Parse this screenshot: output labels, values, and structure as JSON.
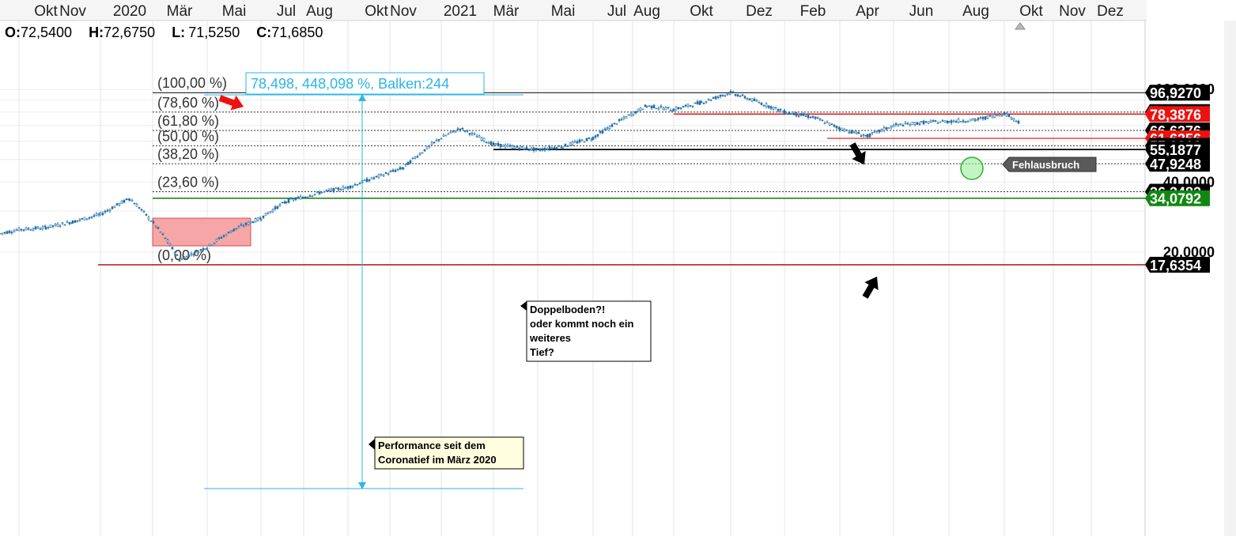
{
  "timeline": {
    "labels": [
      "Okt",
      "Nov",
      "2020",
      "Mär",
      "Mai",
      "Jul",
      "Aug",
      "Okt",
      "Nov",
      "2021",
      "Mär",
      "Mai",
      "Jul",
      "Aug",
      "Okt",
      "Dez",
      "Feb",
      "Apr",
      "Jun",
      "Aug",
      "Okt",
      "Nov",
      "Dez"
    ]
  },
  "ohlc": {
    "o_key": "O:",
    "o_val": "72,5400",
    "h_key": "H:",
    "h_val": "72,6750",
    "l_key": "L:",
    "l_val": "71,5250",
    "c_key": "C:",
    "c_val": "71,6850"
  },
  "fib_labels": [
    "(100,00 %)",
    "(78,60 %)",
    "(61,80 %)",
    "(50,00 %)",
    "(38,20 %)",
    "(23,60 %)",
    "(0,00 %)"
  ],
  "performance_label": "78,498, 448,098 %, Balken:244",
  "annotations": {
    "fehlausbruch": "Fehlausbruch",
    "doppelboden": [
      "Doppelboden?!",
      "oder kommt noch ein",
      "weiteres",
      "Tief?"
    ],
    "performance_note": [
      "Performance seit dem",
      "Coronatief im März 2020"
    ]
  },
  "axis": {
    "scale_labels": [
      "100,0000",
      "40,0000",
      "20,0000"
    ],
    "tags": [
      {
        "text": "96,9270",
        "bg": "#000000"
      },
      {
        "text": "79,9586",
        "bg": "#000000"
      },
      {
        "text": "78,3876",
        "bg": "#ee1111"
      },
      {
        "text": "66,6376",
        "bg": "#000000"
      },
      {
        "text": "61,6356",
        "bg": "#ee1111"
      },
      {
        "text": "57,2812",
        "bg": "#000000"
      },
      {
        "text": "55,1877",
        "bg": "#000000"
      },
      {
        "text": "47,9248",
        "bg": "#000000"
      },
      {
        "text": "36,3482",
        "bg": "#000000"
      },
      {
        "text": "34,0792",
        "bg": "#118811"
      },
      {
        "text": "17,6354",
        "bg": "#000000"
      }
    ]
  },
  "colors": {
    "candles": "#1f6fa8",
    "support_red": "#e02020",
    "support_green": "#117711",
    "perf_cyan": "#2bb5e8",
    "fib_box": "#f4a0a0",
    "circle": "#66dd66"
  },
  "chart_data": {
    "type": "line",
    "log_scale": true,
    "x": [
      "2019-09",
      "2019-10",
      "2019-11",
      "2019-12",
      "2020-01",
      "2020-02",
      "2020-03",
      "2020-04",
      "2020-05",
      "2020-06",
      "2020-07",
      "2020-08",
      "2020-09",
      "2020-10",
      "2020-11",
      "2020-12",
      "2021-01",
      "2021-02",
      "2021-03",
      "2021-04",
      "2021-05",
      "2021-06",
      "2021-07",
      "2021-08",
      "2021-09",
      "2021-10",
      "2021-11",
      "2021-12",
      "2022-01",
      "2022-02",
      "2022-03",
      "2022-04",
      "2022-05",
      "2022-06",
      "2022-07",
      "2022-08",
      "2022-09"
    ],
    "series": [
      {
        "values": [
          24,
          25,
          25.5,
          27,
          29,
          34,
          18.5,
          21,
          25,
          28,
          33,
          36,
          38,
          42,
          46,
          62,
          68,
          58,
          55,
          57,
          62,
          72,
          85,
          82,
          88,
          97,
          88,
          80,
          76,
          68,
          63,
          70,
          72,
          73,
          74,
          79,
          72
        ]
      }
    ],
    "fib_levels": [
      {
        "pct": "100",
        "value": 96.927
      },
      {
        "pct": "78.6",
        "value": 79.9586
      },
      {
        "pct": "61.8",
        "value": 66.6376
      },
      {
        "pct": "50",
        "value": 57.2812
      },
      {
        "pct": "38.2",
        "value": 47.9248
      },
      {
        "pct": "23.6",
        "value": 36.3482
      },
      {
        "pct": "0",
        "value": 17.6354
      }
    ],
    "horizontal_lines": [
      {
        "value": 78.3876,
        "color": "red"
      },
      {
        "value": 61.6356,
        "color": "red"
      },
      {
        "value": 55.1877,
        "color": "black"
      },
      {
        "value": 34.0792,
        "color": "green"
      },
      {
        "value": 17.6354,
        "color": "dark-red"
      }
    ],
    "last": {
      "open": 72.54,
      "high": 72.675,
      "low": 71.525,
      "close": 71.685
    }
  }
}
